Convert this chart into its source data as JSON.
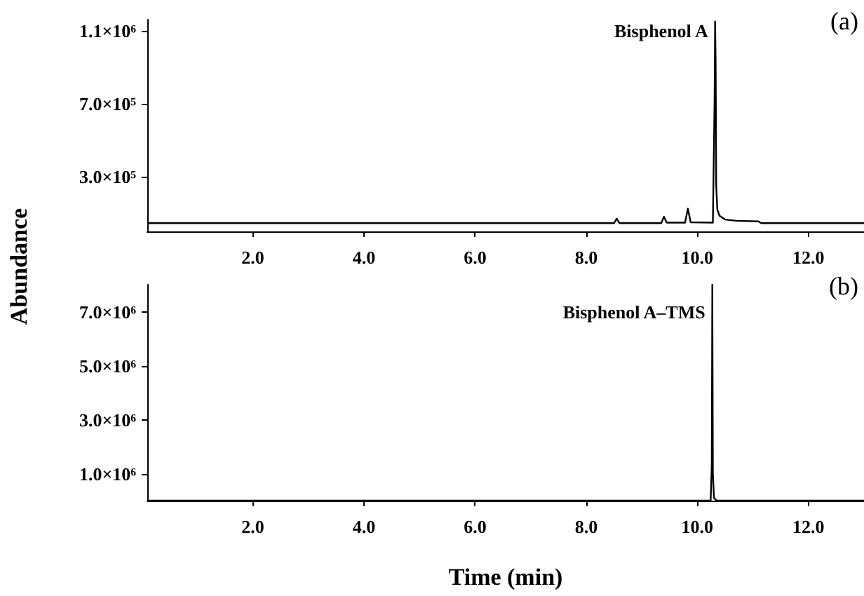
{
  "chart_data": [
    {
      "type": "line",
      "ylabel": "Abundance",
      "grid": false,
      "marker": "none",
      "line_style": "solid",
      "xlim": [
        0.1,
        13.0
      ],
      "xticks": [
        {
          "value": 2,
          "label": "2.0"
        },
        {
          "value": 4,
          "label": "4.0"
        },
        {
          "value": 6,
          "label": "6.0"
        },
        {
          "value": 8,
          "label": "8.0"
        },
        {
          "value": 10,
          "label": "10.0"
        },
        {
          "value": 12,
          "label": "12.0"
        }
      ],
      "ylim": [
        0,
        1160000
      ],
      "yticks": [
        {
          "value": 300000,
          "label": "3.0×10⁵"
        },
        {
          "value": 700000,
          "label": "7.0×10⁵"
        },
        {
          "value": 1100000,
          "label": "1.1×10⁶"
        }
      ],
      "annotations": [
        "(a)",
        {
          "text": "Bisphenol A",
          "x": 10.32,
          "y": 1100000
        }
      ],
      "series": [
        {
          "color": "#000000",
          "x": [
            0.1,
            8.5,
            8.55,
            8.6,
            9.35,
            9.4,
            9.45,
            9.78,
            9.83,
            9.88,
            10.28,
            10.31,
            10.32,
            10.33,
            10.34,
            10.36,
            10.4,
            10.5,
            10.7,
            11.1,
            11.15,
            13.0
          ],
          "values": [
            45000,
            45000,
            70000,
            45000,
            45000,
            80000,
            48000,
            48000,
            125000,
            50000,
            48000,
            700000,
            1150000,
            920000,
            250000,
            120000,
            85000,
            65000,
            58000,
            55000,
            45000,
            45000
          ]
        }
      ]
    },
    {
      "type": "line",
      "xlabel": "Time (min)",
      "grid": false,
      "marker": "none",
      "line_style": "solid",
      "xlim": [
        0.1,
        13.0
      ],
      "xticks": [
        {
          "value": 2,
          "label": "2.0"
        },
        {
          "value": 4,
          "label": "4.0"
        },
        {
          "value": 6,
          "label": "6.0"
        },
        {
          "value": 8,
          "label": "8.0"
        },
        {
          "value": 10,
          "label": "10.0"
        },
        {
          "value": 12,
          "label": "12.0"
        }
      ],
      "ylim": [
        0,
        8000000
      ],
      "yticks": [
        {
          "value": 1000000,
          "label": "1.0×10⁶"
        },
        {
          "value": 3000000,
          "label": "3.0×10⁶"
        },
        {
          "value": 5000000,
          "label": "5.0×10⁶"
        },
        {
          "value": 7000000,
          "label": "7.0×10⁶"
        }
      ],
      "annotations": [
        "(b)",
        {
          "text": "Bisphenol A–TMS",
          "x": 10.27,
          "y": 7000000
        }
      ],
      "series": [
        {
          "color": "#000000",
          "x": [
            0.1,
            10.24,
            10.26,
            10.27,
            10.28,
            10.3,
            10.35,
            13.0
          ],
          "values": [
            0,
            0,
            1300000,
            8000000,
            1000000,
            100000,
            0,
            0
          ]
        }
      ]
    }
  ]
}
